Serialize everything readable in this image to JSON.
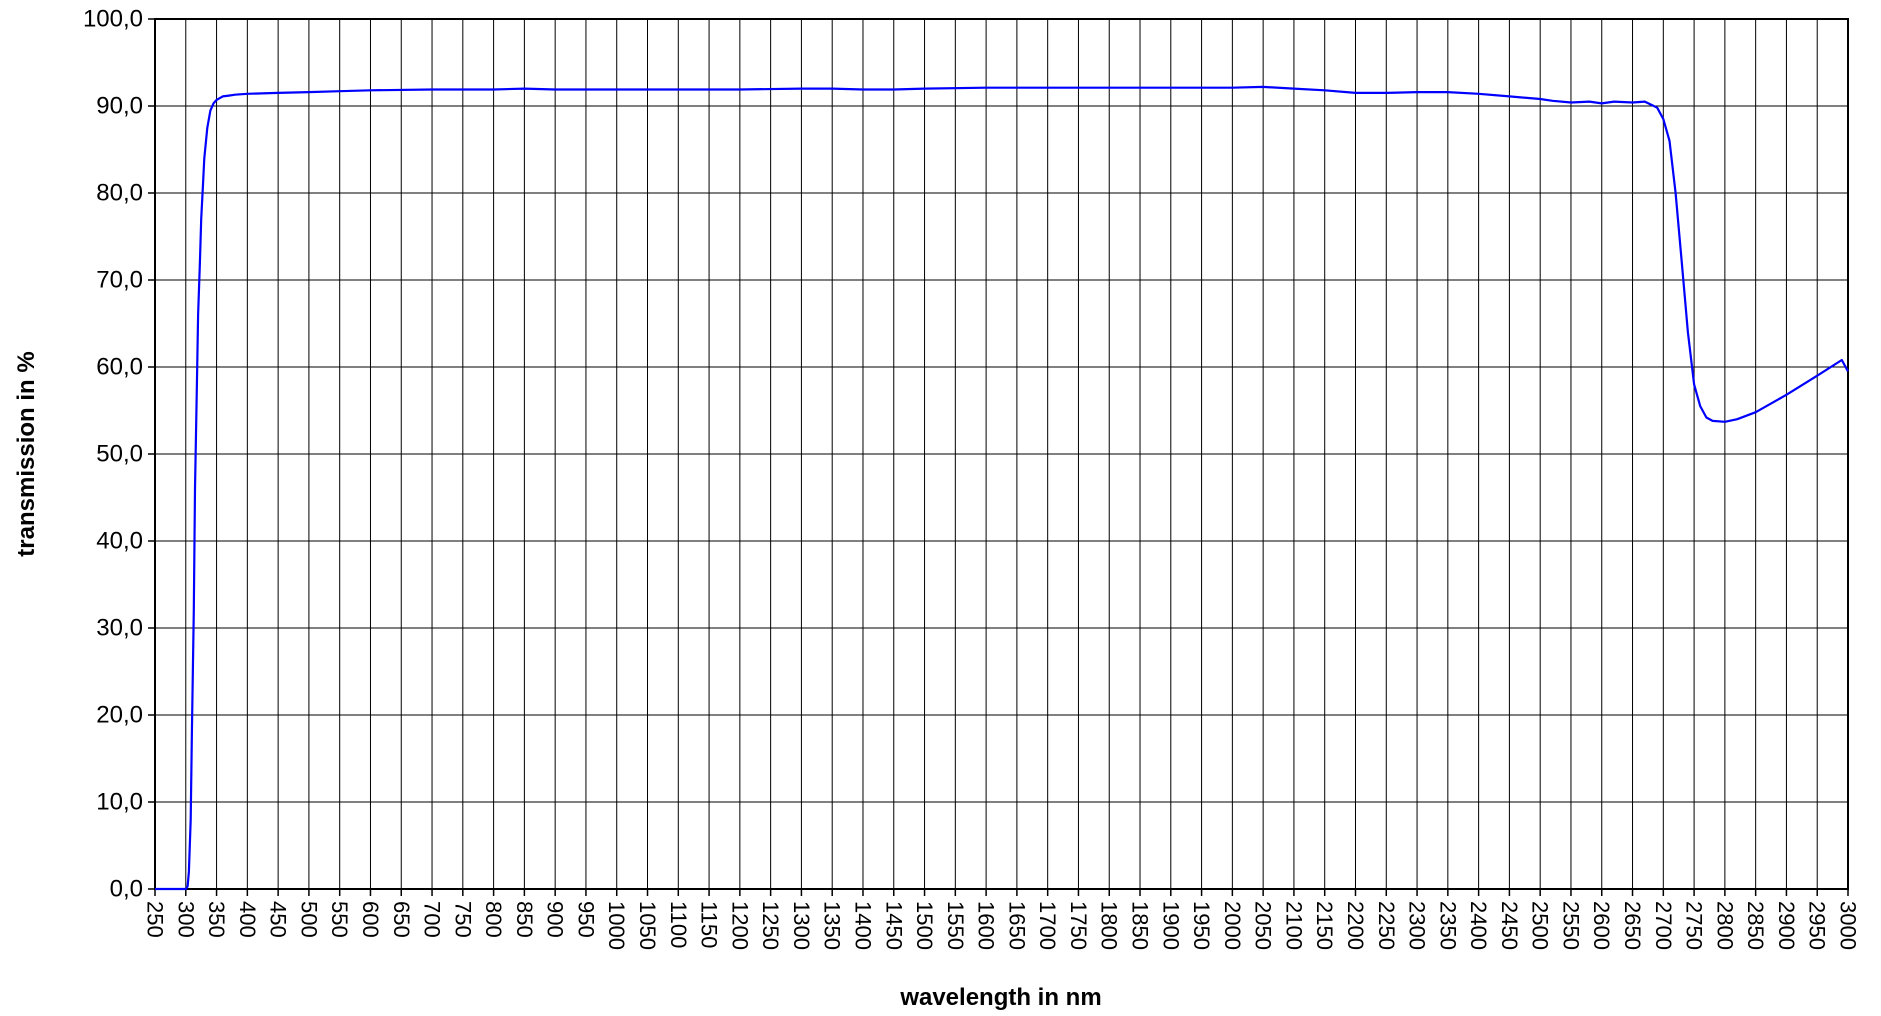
{
  "chart_data": {
    "type": "line",
    "title": "",
    "xlabel": "wavelength in nm",
    "ylabel": "transmission in %",
    "xlim": [
      250,
      3000
    ],
    "ylim": [
      0,
      100
    ],
    "x_ticks": [
      "250",
      "300",
      "350",
      "400",
      "450",
      "500",
      "550",
      "600",
      "650",
      "700",
      "750",
      "800",
      "850",
      "900",
      "950",
      "1000",
      "1050",
      "1100",
      "1150",
      "1200",
      "1250",
      "1300",
      "1350",
      "1400",
      "1450",
      "1500",
      "1550",
      "1600",
      "1650",
      "1700",
      "1750",
      "1800",
      "1850",
      "1900",
      "1950",
      "2000",
      "2050",
      "2100",
      "2150",
      "2200",
      "2250",
      "2300",
      "2350",
      "2400",
      "2450",
      "2500",
      "2550",
      "2600",
      "2650",
      "2700",
      "2750",
      "2800",
      "2850",
      "2900",
      "2950",
      "3000"
    ],
    "y_ticks": [
      "0,0",
      "10,0",
      "20,0",
      "30,0",
      "40,0",
      "50,0",
      "60,0",
      "70,0",
      "80,0",
      "90,0",
      "100,0"
    ],
    "grid": true,
    "line_color": "#0000ff",
    "series": [
      {
        "x": [
          250,
          300,
          303,
          305,
          308,
          310,
          313,
          315,
          318,
          320,
          323,
          325,
          328,
          330,
          335,
          340,
          345,
          350,
          355,
          360,
          370,
          380,
          400,
          450,
          500,
          550,
          600,
          700,
          800,
          850,
          900,
          1000,
          1100,
          1200,
          1300,
          1350,
          1400,
          1450,
          1500,
          1600,
          1700,
          1800,
          1850,
          1900,
          2000,
          2050,
          2100,
          2150,
          2200,
          2250,
          2300,
          2350,
          2400,
          2450,
          2500,
          2520,
          2550,
          2580,
          2600,
          2620,
          2650,
          2670,
          2690,
          2700,
          2710,
          2720,
          2730,
          2740,
          2750,
          2760,
          2770,
          2780,
          2800,
          2820,
          2850,
          2900,
          2950,
          2990,
          3000
        ],
        "y": [
          0,
          0,
          0.3,
          2,
          8,
          18,
          32,
          46,
          58,
          66,
          72,
          77,
          81,
          84,
          87.5,
          89.5,
          90.3,
          90.7,
          90.9,
          91.1,
          91.2,
          91.3,
          91.4,
          91.5,
          91.6,
          91.7,
          91.8,
          91.9,
          91.9,
          92.0,
          91.9,
          91.9,
          91.9,
          91.9,
          92.0,
          92.0,
          91.9,
          91.9,
          92.0,
          92.1,
          92.1,
          92.1,
          92.1,
          92.1,
          92.1,
          92.2,
          92.0,
          91.8,
          91.5,
          91.5,
          91.6,
          91.6,
          91.4,
          91.1,
          90.8,
          90.6,
          90.4,
          90.5,
          90.3,
          90.5,
          90.4,
          90.5,
          89.8,
          88.5,
          86.0,
          80.0,
          72.0,
          64.0,
          58.0,
          55.5,
          54.2,
          53.8,
          53.7,
          54.0,
          54.8,
          56.8,
          59.0,
          60.8,
          59.5
        ]
      }
    ]
  }
}
